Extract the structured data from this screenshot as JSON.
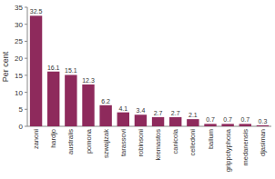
{
  "chart_data": {
    "type": "bar",
    "y_label": "Per cent",
    "categories": [
      "zanoni",
      "hardjo",
      "australis",
      "pomona",
      "szwajizak",
      "tarassovi",
      "robinsoni",
      "kremastos",
      "canicola",
      "celledoni",
      "ballum",
      "grippotyphosa",
      "medanensis",
      "djasiman"
    ],
    "values": [
      32.5,
      16.1,
      15.1,
      12.3,
      6.2,
      4.1,
      3.4,
      2.7,
      2.7,
      2.1,
      0.7,
      0.7,
      0.7,
      0.3
    ],
    "color": "#8e2a5c",
    "ylim": [
      0,
      35
    ],
    "yticks": [
      0,
      5,
      10,
      15,
      20,
      25,
      30,
      35
    ],
    "grid": false,
    "data_labels": true
  }
}
